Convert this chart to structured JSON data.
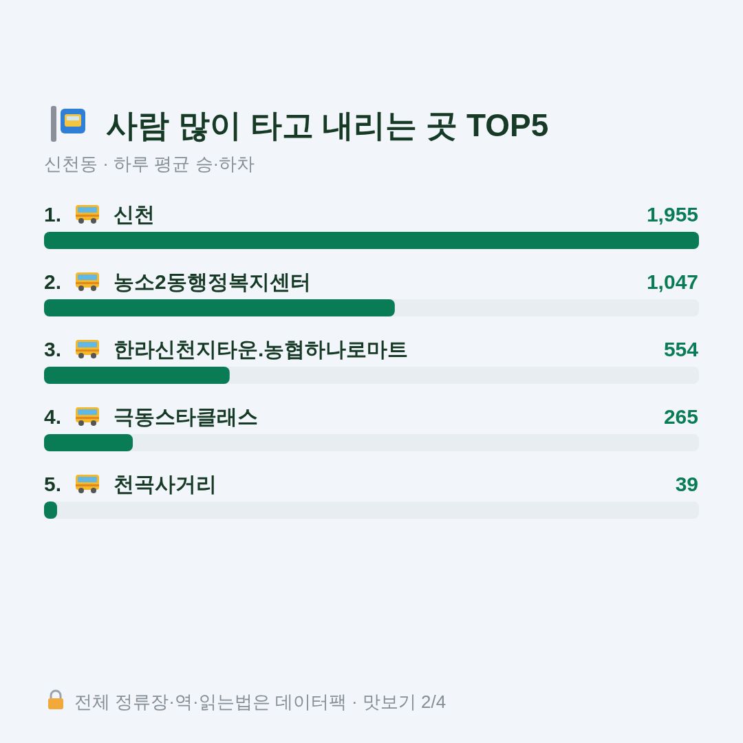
{
  "chart_data": {
    "type": "bar",
    "orientation": "horizontal",
    "title": "사람 많이 타고 내리는 곳 TOP5",
    "subtitle": "신천동 · 하루 평균 승·하차",
    "categories": [
      "1. 신천",
      "2. 농소2동행정복지센터",
      "3. 한라신천지타운.농협하나로마트",
      "4. 극동스타클래스",
      "5. 천곡사거리"
    ],
    "values": [
      1955,
      1047,
      554,
      265,
      39
    ],
    "color": "#0a7c55",
    "value_labels": [
      "1,955",
      "1,047",
      "554",
      "265",
      "39"
    ],
    "annotations": [
      "전체 정류장·역·읽는법은 데이터팩 · 맛보기 2/4"
    ]
  }
}
